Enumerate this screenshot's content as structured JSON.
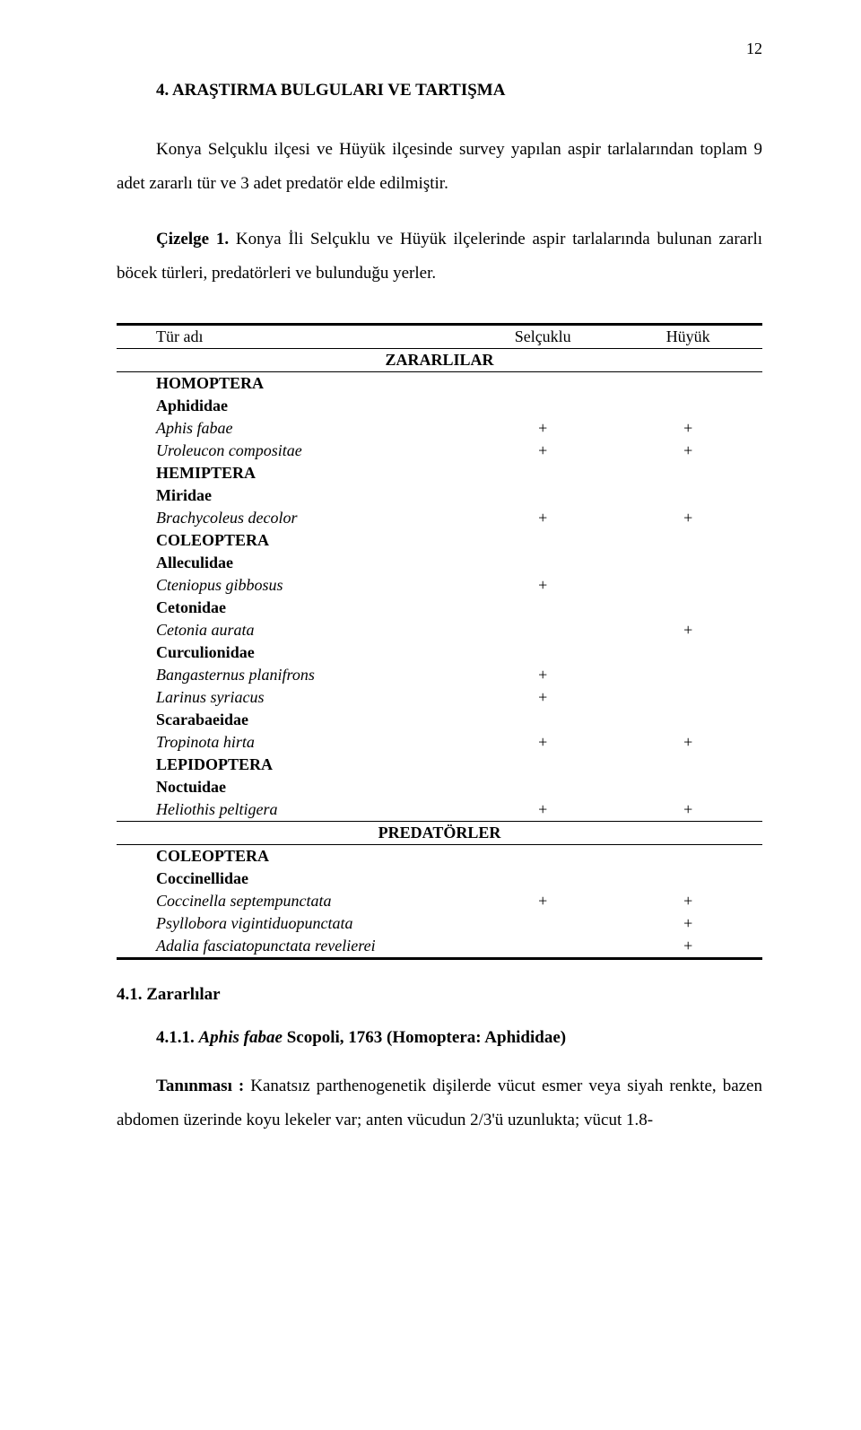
{
  "pageNumber": "12",
  "heading": "4. ARAŞTIRMA BULGULARI  VE TARTIŞMA",
  "para1": "Konya Selçuklu ilçesi ve Hüyük ilçesinde survey yapılan aspir tarlalarından toplam 9 adet zararlı tür ve 3 adet predatör elde edilmiştir.",
  "para2_lead": "Çizelge 1.",
  "para2_rest": " Konya İli Selçuklu ve Hüyük ilçelerinde aspir tarlalarında bulunan zararlı böcek türleri, predatörleri  ve bulunduğu yerler.",
  "table": {
    "header": {
      "c1": "Tür adı",
      "c2": "Selçuklu",
      "c3": "Hüyük"
    },
    "banner_pests": "ZARARLILAR",
    "banner_predators": "PREDATÖRLER",
    "rowsPests": [
      {
        "name": "HOMOPTERA",
        "a": "",
        "b": "",
        "bold": true
      },
      {
        "name": "Aphididae",
        "a": "",
        "b": "",
        "bold": true
      },
      {
        "name": "Aphis fabae",
        "a": "+",
        "b": "+",
        "italic": true
      },
      {
        "name": "Uroleucon compositae",
        "a": "+",
        "b": "+",
        "italic": true
      },
      {
        "name": "HEMIPTERA",
        "a": "",
        "b": "",
        "bold": true
      },
      {
        "name": "Miridae",
        "a": "",
        "b": "",
        "bold": true
      },
      {
        "name": "Brachycoleus decolor",
        "a": "+",
        "b": "+",
        "italic": true
      },
      {
        "name": "COLEOPTERA",
        "a": "",
        "b": "",
        "bold": true
      },
      {
        "name": "Alleculidae",
        "a": "",
        "b": "",
        "bold": true
      },
      {
        "name": "Cteniopus gibbosus",
        "a": "+",
        "b": "",
        "italic": true
      },
      {
        "name": "Cetonidae",
        "a": "",
        "b": "",
        "bold": true
      },
      {
        "name": "Cetonia aurata",
        "a": "",
        "b": "+",
        "italic": true
      },
      {
        "name": "Curculionidae",
        "a": "",
        "b": "",
        "bold": true
      },
      {
        "name": "Bangasternus planifrons",
        "a": "+",
        "b": "",
        "italic": true
      },
      {
        "name": "Larinus syriacus",
        "a": "+",
        "b": "",
        "italic": true
      },
      {
        "name": "Scarabaeidae",
        "a": "",
        "b": "",
        "bold": true
      },
      {
        "name": "Tropinota hirta",
        "a": "+",
        "b": "+",
        "italic": true
      },
      {
        "name": "LEPIDOPTERA",
        "a": "",
        "b": "",
        "bold": true
      },
      {
        "name": "Noctuidae",
        "a": "",
        "b": "",
        "bold": true
      },
      {
        "name": "Heliothis peltigera",
        "a": "+",
        "b": "+",
        "italic": true
      }
    ],
    "rowsPred": [
      {
        "name": "COLEOPTERA",
        "a": "",
        "b": "",
        "bold": true
      },
      {
        "name": "Coccinellidae",
        "a": "",
        "b": "",
        "bold": true
      },
      {
        "name": "Coccinella septempunctata",
        "a": "+",
        "b": "+",
        "italic": true
      },
      {
        "name": "Psyllobora vigintiduopunctata",
        "a": "",
        "b": "+",
        "italic": true
      },
      {
        "name": "Adalia fasciatopunctata revelierei",
        "a": "",
        "b": "+",
        "italic": true
      }
    ]
  },
  "sub1": "4.1. Zararlılar",
  "sub11_lead": "4.1.1. ",
  "sub11_ital": "Aphis fabae ",
  "sub11_rest": "Scopoli, 1763 (Homoptera: Aphididae)",
  "para3_lead": "Tanınması :",
  "para3_rest": " Kanatsız parthenogenetik dişilerde vücut esmer veya siyah renkte, bazen abdomen üzerinde koyu lekeler  var; anten vücudun 2/3'ü uzunlukta; vücut 1.8-"
}
